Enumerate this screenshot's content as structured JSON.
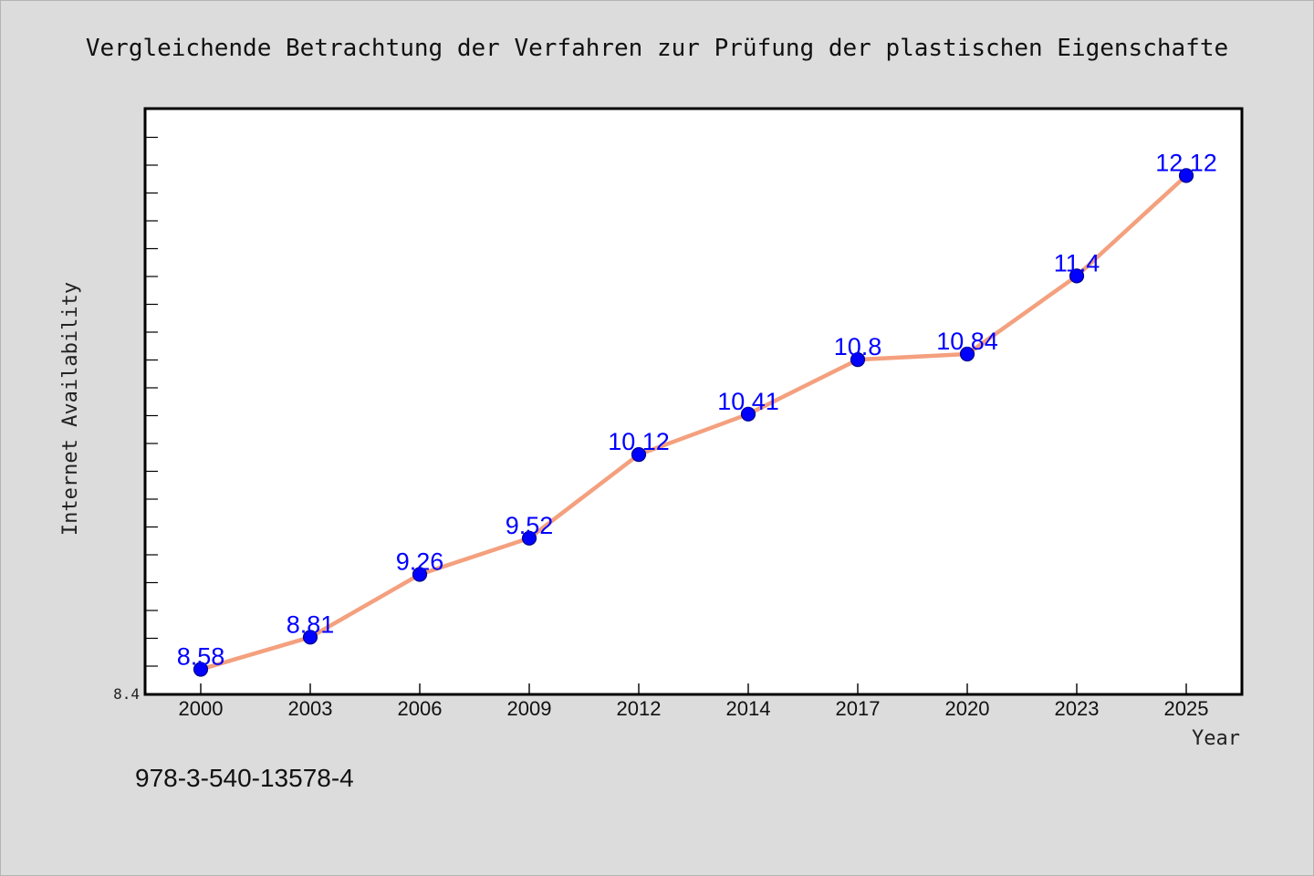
{
  "chart_data": {
    "type": "line",
    "title": "Vergleichende Betrachtung der Verfahren zur Prüfung der plastischen Eigenschafte",
    "xlabel": "Year",
    "ylabel": "Internet Availability",
    "categories": [
      "2000",
      "2003",
      "2006",
      "2009",
      "2012",
      "2014",
      "2017",
      "2020",
      "2023",
      "2025"
    ],
    "values": [
      8.58,
      8.81,
      9.26,
      9.52,
      10.12,
      10.41,
      10.8,
      10.84,
      11.4,
      12.12
    ],
    "data_labels": [
      "8.58",
      "8.81",
      "9.26",
      "9.52",
      "10.12",
      "10.41",
      "10.8",
      "10.84",
      "11.4",
      "12.12"
    ],
    "ylim": [
      8.4,
      12.6
    ],
    "y_tick_labels": [
      "8.4"
    ],
    "grid": false,
    "legend": "none",
    "line_color": "#f4a07e",
    "marker_color": "#0000ff",
    "label_color": "#0000ff"
  },
  "footer": {
    "isbn": "978-3-540-13578-4"
  }
}
